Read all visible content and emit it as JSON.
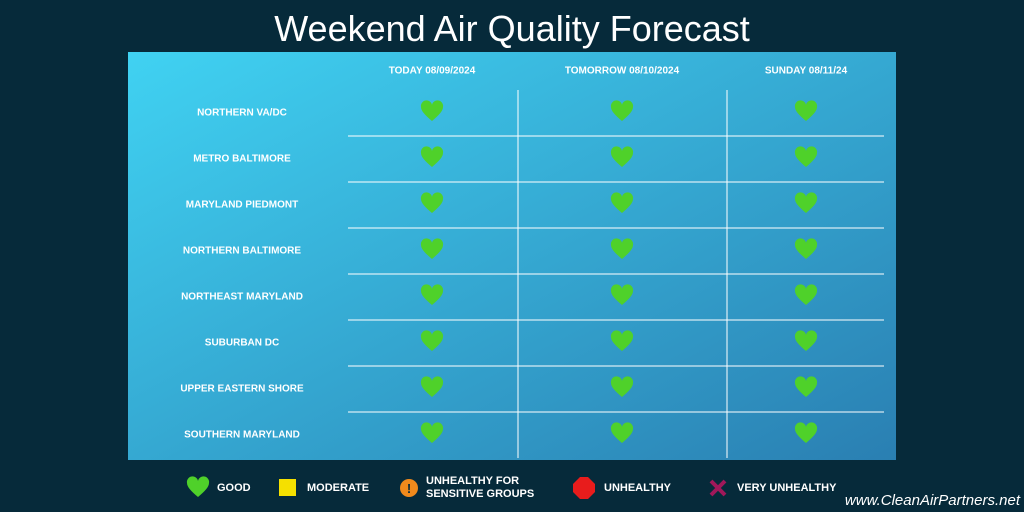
{
  "title": "Weekend Air Quality Forecast",
  "table": {
    "columns": [
      "TODAY 08/09/2024",
      "TOMORROW 08/10/2024",
      "SUNDAY 08/11/24"
    ],
    "rows": [
      "NORTHERN VA/DC",
      "METRO BALTIMORE",
      "MARYLAND PIEDMONT",
      "NORTHERN BALTIMORE",
      "NORTHEAST MARYLAND",
      "SUBURBAN DC",
      "UPPER EASTERN SHORE",
      "SOUTHERN MARYLAND"
    ]
  },
  "legend": [
    "GOOD",
    "MODERATE",
    "UNHEALTHY FOR SENSITIVE GROUPS",
    "UNHEALTHY",
    "VERY UNHEALTHY"
  ],
  "footer": "www.CleanAirPartners.net"
}
